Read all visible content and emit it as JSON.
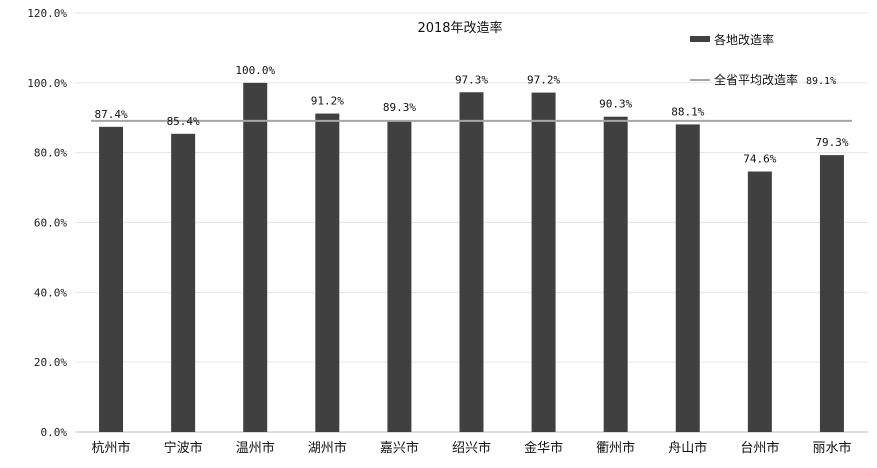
{
  "chart_data": {
    "type": "bar",
    "title": "2018年改造率",
    "categories": [
      "杭州市",
      "宁波市",
      "温州市",
      "湖州市",
      "嘉兴市",
      "绍兴市",
      "金华市",
      "衢州市",
      "舟山市",
      "台州市",
      "丽水市"
    ],
    "series": [
      {
        "name": "各地改造率",
        "values": [
          87.4,
          85.4,
          100.0,
          91.2,
          89.3,
          97.3,
          97.2,
          90.3,
          88.1,
          74.6,
          79.3
        ],
        "labels": [
          "87.4%",
          "85.4%",
          "100.0%",
          "91.2%",
          "89.3%",
          "97.3%",
          "97.2%",
          "90.3%",
          "88.1%",
          "74.6%",
          "79.3%"
        ],
        "color": "#404040"
      }
    ],
    "reference_line": {
      "name": "全省平均改造率",
      "value": 89.1,
      "label": "89.1%",
      "color": "#a6a6a6"
    },
    "ylim": [
      0,
      120
    ],
    "yticks": [
      0,
      20,
      40,
      60,
      80,
      100,
      120
    ],
    "ytick_labels": [
      "0.0%",
      "20.0%",
      "40.0%",
      "60.0%",
      "80.0%",
      "100.0%",
      "120.0%"
    ],
    "grid": true,
    "legend": "top-right"
  }
}
